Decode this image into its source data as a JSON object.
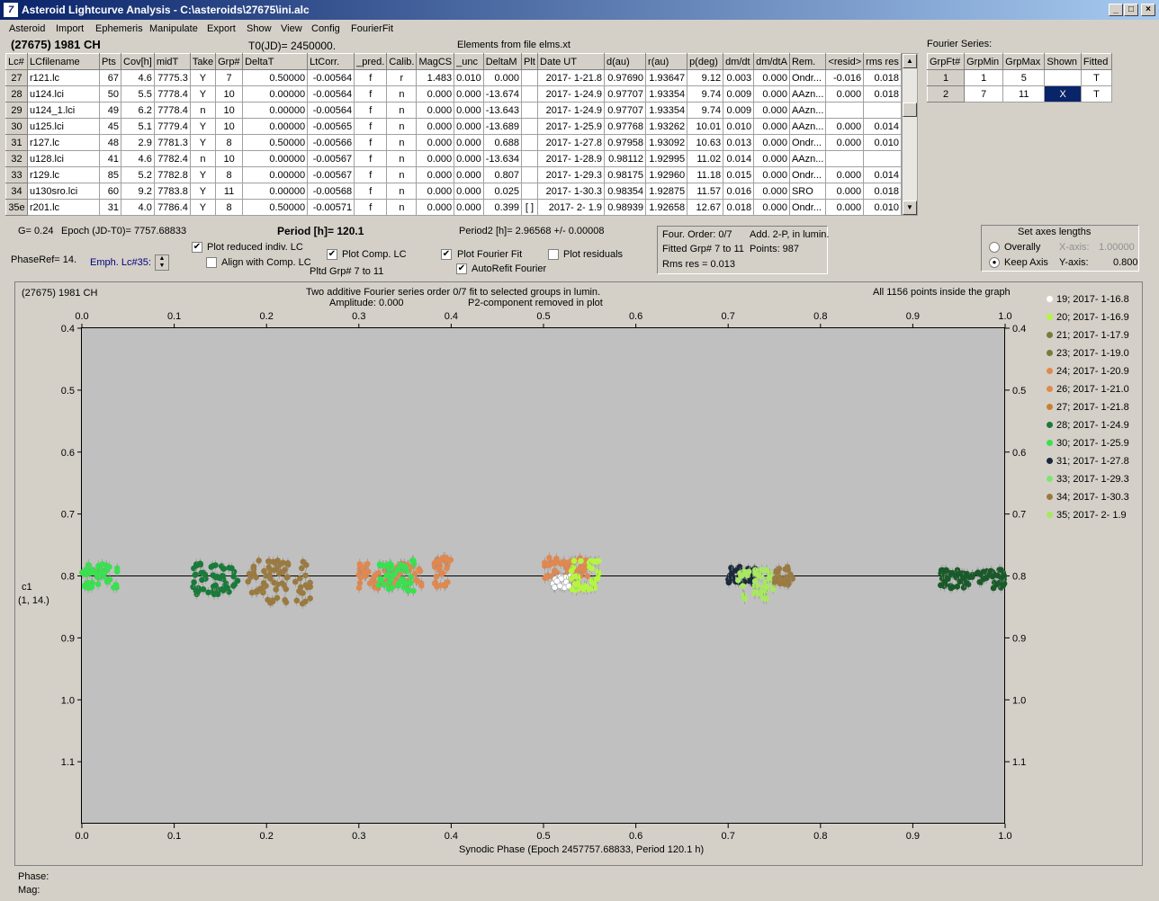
{
  "window": {
    "title": "Asteroid Lightcurve Analysis - C:\\asteroids\\27675\\ini.alc",
    "app_icon": "ALC-icon"
  },
  "menu": [
    "Asteroid",
    "Import",
    "Ephemeris",
    "Manipulate",
    "Export",
    "Show",
    "View",
    "Config",
    "FourierFit"
  ],
  "header": {
    "asteroid": "(27675) 1981 CH",
    "t0": "T0(JD)= 2450000.",
    "elements": "Elements from file elms.xt"
  },
  "lc_table": {
    "columns": [
      "Lc#",
      "LCfilename",
      "Pts",
      "Cov[h]",
      "midT",
      "Take",
      "Grp#",
      "DeltaT",
      "LtCorr.",
      "_pred.",
      "Calib.",
      "MagCS",
      "_unc",
      "DeltaM",
      "Plt",
      "Date UT",
      "d(au)",
      "r(au)",
      "p(deg)",
      "dm/dt",
      "dm/dtA",
      "Rem.",
      "<resid>",
      "rms res"
    ],
    "rows": [
      [
        "27",
        "r121.lc",
        "67",
        "4.6",
        "7775.3",
        "Y",
        "7",
        "0.50000",
        "-0.00564",
        "f",
        "r",
        "1.483",
        "0.010",
        "0.000",
        "",
        "2017- 1-21.8",
        "0.97690",
        "1.93647",
        "9.12",
        "0.003",
        "0.000",
        "Ondr...",
        "-0.016",
        "0.018"
      ],
      [
        "28",
        "u124.lci",
        "50",
        "5.5",
        "7778.4",
        "Y",
        "10",
        "0.00000",
        "-0.00564",
        "f",
        "n",
        "0.000",
        "0.000",
        "-13.674",
        "",
        "2017- 1-24.9",
        "0.97707",
        "1.93354",
        "9.74",
        "0.009",
        "0.000",
        "AAzn...",
        "0.000",
        "0.018"
      ],
      [
        "29",
        "u124_1.lci",
        "49",
        "6.2",
        "7778.4",
        "n",
        "10",
        "0.00000",
        "-0.00564",
        "f",
        "n",
        "0.000",
        "0.000",
        "-13.643",
        "",
        "2017- 1-24.9",
        "0.97707",
        "1.93354",
        "9.74",
        "0.009",
        "0.000",
        "AAzn...",
        "",
        ""
      ],
      [
        "30",
        "u125.lci",
        "45",
        "5.1",
        "7779.4",
        "Y",
        "10",
        "0.00000",
        "-0.00565",
        "f",
        "n",
        "0.000",
        "0.000",
        "-13.689",
        "",
        "2017- 1-25.9",
        "0.97768",
        "1.93262",
        "10.01",
        "0.010",
        "0.000",
        "AAzn...",
        "0.000",
        "0.014"
      ],
      [
        "31",
        "r127.lc",
        "48",
        "2.9",
        "7781.3",
        "Y",
        "8",
        "0.50000",
        "-0.00566",
        "f",
        "n",
        "0.000",
        "0.000",
        "0.688",
        "",
        "2017- 1-27.8",
        "0.97958",
        "1.93092",
        "10.63",
        "0.013",
        "0.000",
        "Ondr...",
        "0.000",
        "0.010"
      ],
      [
        "32",
        "u128.lci",
        "41",
        "4.6",
        "7782.4",
        "n",
        "10",
        "0.00000",
        "-0.00567",
        "f",
        "n",
        "0.000",
        "0.000",
        "-13.634",
        "",
        "2017- 1-28.9",
        "0.98112",
        "1.92995",
        "11.02",
        "0.014",
        "0.000",
        "AAzn...",
        "",
        ""
      ],
      [
        "33",
        "r129.lc",
        "85",
        "5.2",
        "7782.8",
        "Y",
        "8",
        "0.00000",
        "-0.00567",
        "f",
        "n",
        "0.000",
        "0.000",
        "0.807",
        "",
        "2017- 1-29.3",
        "0.98175",
        "1.92960",
        "11.18",
        "0.015",
        "0.000",
        "Ondr...",
        "0.000",
        "0.014"
      ],
      [
        "34",
        "u130sro.lci",
        "60",
        "9.2",
        "7783.8",
        "Y",
        "11",
        "0.00000",
        "-0.00568",
        "f",
        "n",
        "0.000",
        "0.000",
        "0.025",
        "",
        "2017- 1-30.3",
        "0.98354",
        "1.92875",
        "11.57",
        "0.016",
        "0.000",
        "SRO",
        "0.000",
        "0.018"
      ],
      [
        "35e",
        "r201.lc",
        "31",
        "4.0",
        "7786.4",
        "Y",
        "8",
        "0.50000",
        "-0.00571",
        "f",
        "n",
        "0.000",
        "0.000",
        "0.399",
        "[ ]",
        "2017- 2- 1.9",
        "0.98939",
        "1.92658",
        "12.67",
        "0.018",
        "0.000",
        "Ondr...",
        "0.000",
        "0.010"
      ]
    ]
  },
  "fourier_table": {
    "label": "Fourier Series:",
    "columns": [
      "GrpFt#",
      "GrpMin",
      "GrpMax",
      "Shown",
      "Fitted"
    ],
    "rows": [
      [
        "1",
        "1",
        "5",
        "",
        "T"
      ],
      [
        "2",
        "7",
        "11",
        "X",
        "T"
      ]
    ]
  },
  "controls": {
    "g": "G= 0.24",
    "epoch": "Epoch (JD-T0)= 7757.68833",
    "period": "Period [h]= 120.1",
    "period2": "Period2 [h]= 2.96568 +/- 0.00008",
    "phaseref": "PhaseRef= 14.",
    "emph": "Emph. Lc#35:",
    "plot_reduced": "Plot reduced indiv. LC",
    "align_comp": "Align with Comp. LC",
    "plot_comp": "Plot Comp. LC",
    "pltd_grp": "Pltd Grp#  7   to   11",
    "plot_fourier": "Plot Fourier Fit",
    "autorefit": "AutoRefit Fourier",
    "plot_resid": "Plot residuals",
    "four_order": "Four. Order:  0/7",
    "add": "Add. 2-P, in lumin.",
    "fitted_grp": "Fitted Grp# 7 to 11",
    "points": "Points: 987",
    "rms": "Rms res     = 0.013",
    "axes_title": "Set axes lengths",
    "overally": "Overally",
    "keep_axis": "Keep Axis",
    "xaxis_label": "X-axis:",
    "xaxis_val": "1.00000",
    "yaxis_label": "Y-axis:",
    "yaxis_val": "0.800"
  },
  "plot": {
    "name": "(27675) 1981 CH",
    "subtitle1": "Two additive Fourier series order 0/7 fit to selected groups in lumin.",
    "subtitle2": "Amplitude: 0.000",
    "subtitle3": "P2-component removed in plot",
    "points_note": "All 1156 points inside the graph",
    "xlabel": "Synodic Phase (Epoch 2457757.68833, Period 120.1 h)",
    "ylabel1": "c1",
    "ylabel2": "(1, 14.)",
    "xticks": [
      "0.0",
      "0.1",
      "0.2",
      "0.3",
      "0.4",
      "0.5",
      "0.6",
      "0.7",
      "0.8",
      "0.9",
      "1.0"
    ],
    "yticks": [
      "0.4",
      "0.5",
      "0.6",
      "0.7",
      "0.8",
      "0.9",
      "1.0",
      "1.1"
    ]
  },
  "legend": [
    {
      "label": "19; 2017- 1-16.8",
      "color": "#ffffff"
    },
    {
      "label": "20; 2017- 1-16.9",
      "color": "#b5f542"
    },
    {
      "label": "21; 2017- 1-17.9",
      "color": "#7a7a3a"
    },
    {
      "label": "23; 2017- 1-19.0",
      "color": "#7a7a3a"
    },
    {
      "label": "24; 2017- 1-20.9",
      "color": "#e08850"
    },
    {
      "label": "26; 2017- 1-21.0",
      "color": "#e08850"
    },
    {
      "label": "27; 2017- 1-21.8",
      "color": "#c88030"
    },
    {
      "label": "28; 2017- 1-24.9",
      "color": "#1a7a3a"
    },
    {
      "label": "30; 2017- 1-25.9",
      "color": "#3ae050"
    },
    {
      "label": "31; 2017- 1-27.8",
      "color": "#1a2a3a"
    },
    {
      "label": "33; 2017- 1-29.3",
      "color": "#7ae870"
    },
    {
      "label": "34; 2017- 1-30.3",
      "color": "#9a7a40"
    },
    {
      "label": "35; 2017- 2- 1.9",
      "color": "#a8e860"
    }
  ],
  "chart_data": {
    "type": "scatter",
    "title": "(27675) 1981 CH",
    "xlabel": "Synodic Phase (Epoch 2457757.68833, Period 120.1 h)",
    "ylabel": "c1",
    "xlim": [
      0.0,
      1.0
    ],
    "ylim": [
      1.2,
      0.4
    ],
    "fit_line_y": 0.8,
    "clusters": [
      {
        "x": [
          0.0,
          0.04
        ],
        "y": 0.8,
        "spread": 0.02,
        "color": "#3ae050"
      },
      {
        "x": [
          0.12,
          0.17
        ],
        "y": 0.805,
        "spread": 0.025,
        "color": "#1a7a3a"
      },
      {
        "x": [
          0.18,
          0.25
        ],
        "y": 0.81,
        "spread": 0.035,
        "color": "#9a7a40"
      },
      {
        "x": [
          0.3,
          0.37
        ],
        "y": 0.8,
        "spread": 0.02,
        "color": "#e08850"
      },
      {
        "x": [
          0.32,
          0.36
        ],
        "y": 0.8,
        "spread": 0.025,
        "color": "#3ae050"
      },
      {
        "x": [
          0.38,
          0.4
        ],
        "y": 0.795,
        "spread": 0.025,
        "color": "#e08850"
      },
      {
        "x": [
          0.5,
          0.55
        ],
        "y": 0.79,
        "spread": 0.02,
        "color": "#e08850"
      },
      {
        "x": [
          0.51,
          0.53
        ],
        "y": 0.81,
        "spread": 0.01,
        "color": "#ffffff"
      },
      {
        "x": [
          0.53,
          0.56
        ],
        "y": 0.8,
        "spread": 0.025,
        "color": "#b5f542"
      },
      {
        "x": [
          0.7,
          0.73
        ],
        "y": 0.8,
        "spread": 0.015,
        "color": "#1a2a3a"
      },
      {
        "x": [
          0.71,
          0.75
        ],
        "y": 0.815,
        "spread": 0.025,
        "color": "#a8e860"
      },
      {
        "x": [
          0.75,
          0.77
        ],
        "y": 0.8,
        "spread": 0.015,
        "color": "#9a7a40"
      },
      {
        "x": [
          0.93,
          1.0
        ],
        "y": 0.805,
        "spread": 0.015,
        "color": "#1a5a2a"
      }
    ]
  },
  "status": {
    "phase": "Phase:",
    "mag": "Mag:"
  }
}
